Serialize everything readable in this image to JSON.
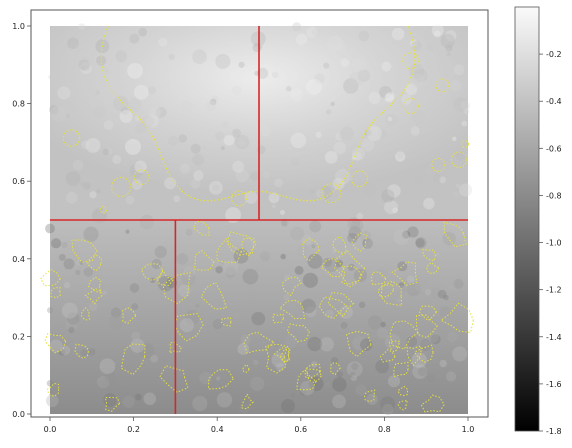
{
  "chart_data": {
    "type": "heatmap",
    "title": "",
    "xlabel": "",
    "ylabel": "",
    "xlim": [
      0.0,
      1.0
    ],
    "ylim": [
      0.0,
      1.0
    ],
    "x_ticks": [
      "0.0",
      "0.2",
      "0.4",
      "0.6",
      "0.8",
      "1.0"
    ],
    "y_ticks": [
      "0.0",
      "0.2",
      "0.4",
      "0.6",
      "0.8",
      "1.0"
    ],
    "colorbar": {
      "colormap": "gray",
      "range": [
        -1.8,
        0.0
      ],
      "ticks": [
        "-0.2",
        "-0.4",
        "-0.6",
        "-0.8",
        "-1.0",
        "-1.2",
        "-1.4",
        "-1.6",
        "-1.8"
      ]
    },
    "partition_lines": {
      "color": "#d62728",
      "segments": [
        {
          "x": [
            0.5,
            0.5
          ],
          "y": [
            0.5,
            1.0
          ]
        },
        {
          "x": [
            0.0,
            1.0
          ],
          "y": [
            0.5,
            0.5
          ]
        },
        {
          "x": [
            0.3,
            0.3
          ],
          "y": [
            0.0,
            0.5
          ]
        }
      ]
    },
    "contour_color": "#e8e23a",
    "grid": false
  }
}
